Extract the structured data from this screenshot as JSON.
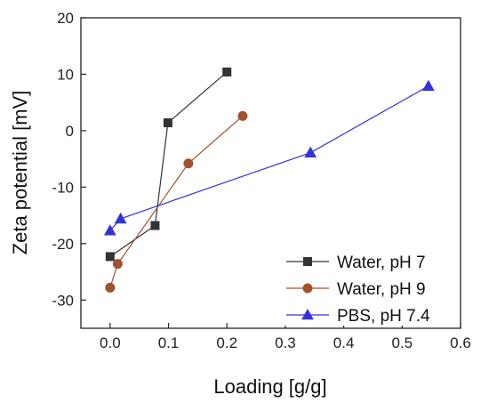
{
  "chart_data": {
    "type": "scatter",
    "xlabel": "Loading [g/g]",
    "ylabel": "Zeta potential [mV]",
    "xlim": [
      -0.05,
      0.6
    ],
    "ylim": [
      -35,
      20
    ],
    "xticks": [
      0.0,
      0.1,
      0.2,
      0.3,
      0.4,
      0.5,
      0.6
    ],
    "xtick_labels": [
      "0.0",
      "0.1",
      "0.2",
      "0.3",
      "0.4",
      "0.5",
      "0.6"
    ],
    "yticks": [
      -30,
      -20,
      -10,
      0,
      10,
      20
    ],
    "ytick_labels": [
      "-30",
      "-20",
      "-10",
      "0",
      "10",
      "20"
    ],
    "grid": false,
    "legend_position": "bottom-right",
    "lines_connected": true,
    "series": [
      {
        "name": "Water, pH 7",
        "color": "#333333",
        "marker": "square",
        "x": [
          0.0,
          0.077,
          0.099,
          0.2
        ],
        "y": [
          -22.3,
          -16.8,
          1.4,
          10.4
        ]
      },
      {
        "name": "Water, pH 9",
        "color": "#a0522d",
        "marker": "circle",
        "x": [
          0.0,
          0.013,
          0.134,
          0.227
        ],
        "y": [
          -27.8,
          -23.6,
          -5.8,
          2.6
        ]
      },
      {
        "name": "PBS, pH 7.4",
        "color": "#3333dd",
        "marker": "triangle",
        "x": [
          0.0,
          0.018,
          0.343,
          0.545
        ],
        "y": [
          -17.7,
          -15.6,
          -3.9,
          7.9
        ]
      }
    ]
  }
}
